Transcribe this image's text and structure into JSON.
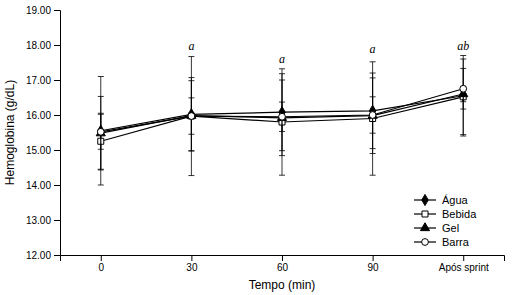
{
  "chart_data": {
    "type": "line",
    "xlabel": "Tempo (min)",
    "ylabel": "Hemoglobina (g/dL)",
    "categories": [
      "0",
      "30",
      "60",
      "90",
      "Após sprint"
    ],
    "ylim": [
      12.0,
      19.0
    ],
    "yticks": [
      {
        "value": 12.0,
        "label": "12.00"
      },
      {
        "value": 13.0,
        "label": "13.00"
      },
      {
        "value": 14.0,
        "label": "14.00"
      },
      {
        "value": 15.0,
        "label": "15.00"
      },
      {
        "value": 16.0,
        "label": "16.00"
      },
      {
        "value": 17.0,
        "label": "17.00"
      },
      {
        "value": 18.0,
        "label": "18.00"
      },
      {
        "value": 19.0,
        "label": "19.00"
      }
    ],
    "grid": false,
    "legend": "lower right",
    "series": [
      {
        "name": "Água",
        "color": "black",
        "marker": "diamond",
        "values": [
          15.55,
          16.02,
          16.08,
          16.12,
          16.55
        ],
        "errors": [
          1.55,
          1.05,
          1.1,
          1.08,
          1.15
        ]
      },
      {
        "name": "Bebida",
        "color": "black",
        "marker": "square-open",
        "values": [
          15.25,
          15.97,
          15.8,
          15.9,
          16.52
        ],
        "errors": [
          0.8,
          1.7,
          1.52,
          1.62,
          1.08
        ]
      },
      {
        "name": "Gel",
        "color": "black",
        "marker": "triangle",
        "values": [
          15.48,
          15.98,
          15.92,
          15.98,
          16.6
        ],
        "errors": [
          1.05,
          1.0,
          1.08,
          1.08,
          0.22
        ]
      },
      {
        "name": "Barra",
        "color": "black",
        "marker": "circle-open",
        "values": [
          15.52,
          15.97,
          15.95,
          16.0,
          16.75
        ],
        "errors": [
          0.5,
          0.52,
          0.42,
          0.52,
          0.58
        ]
      }
    ],
    "annotations": [
      {
        "text": "a",
        "x": "30",
        "y": 17.8
      },
      {
        "text": "a",
        "x": "60",
        "y": 17.42
      },
      {
        "text": "a",
        "x": "90",
        "y": 17.72
      },
      {
        "text": "ab",
        "x": "Após sprint",
        "y": 17.8
      }
    ]
  }
}
